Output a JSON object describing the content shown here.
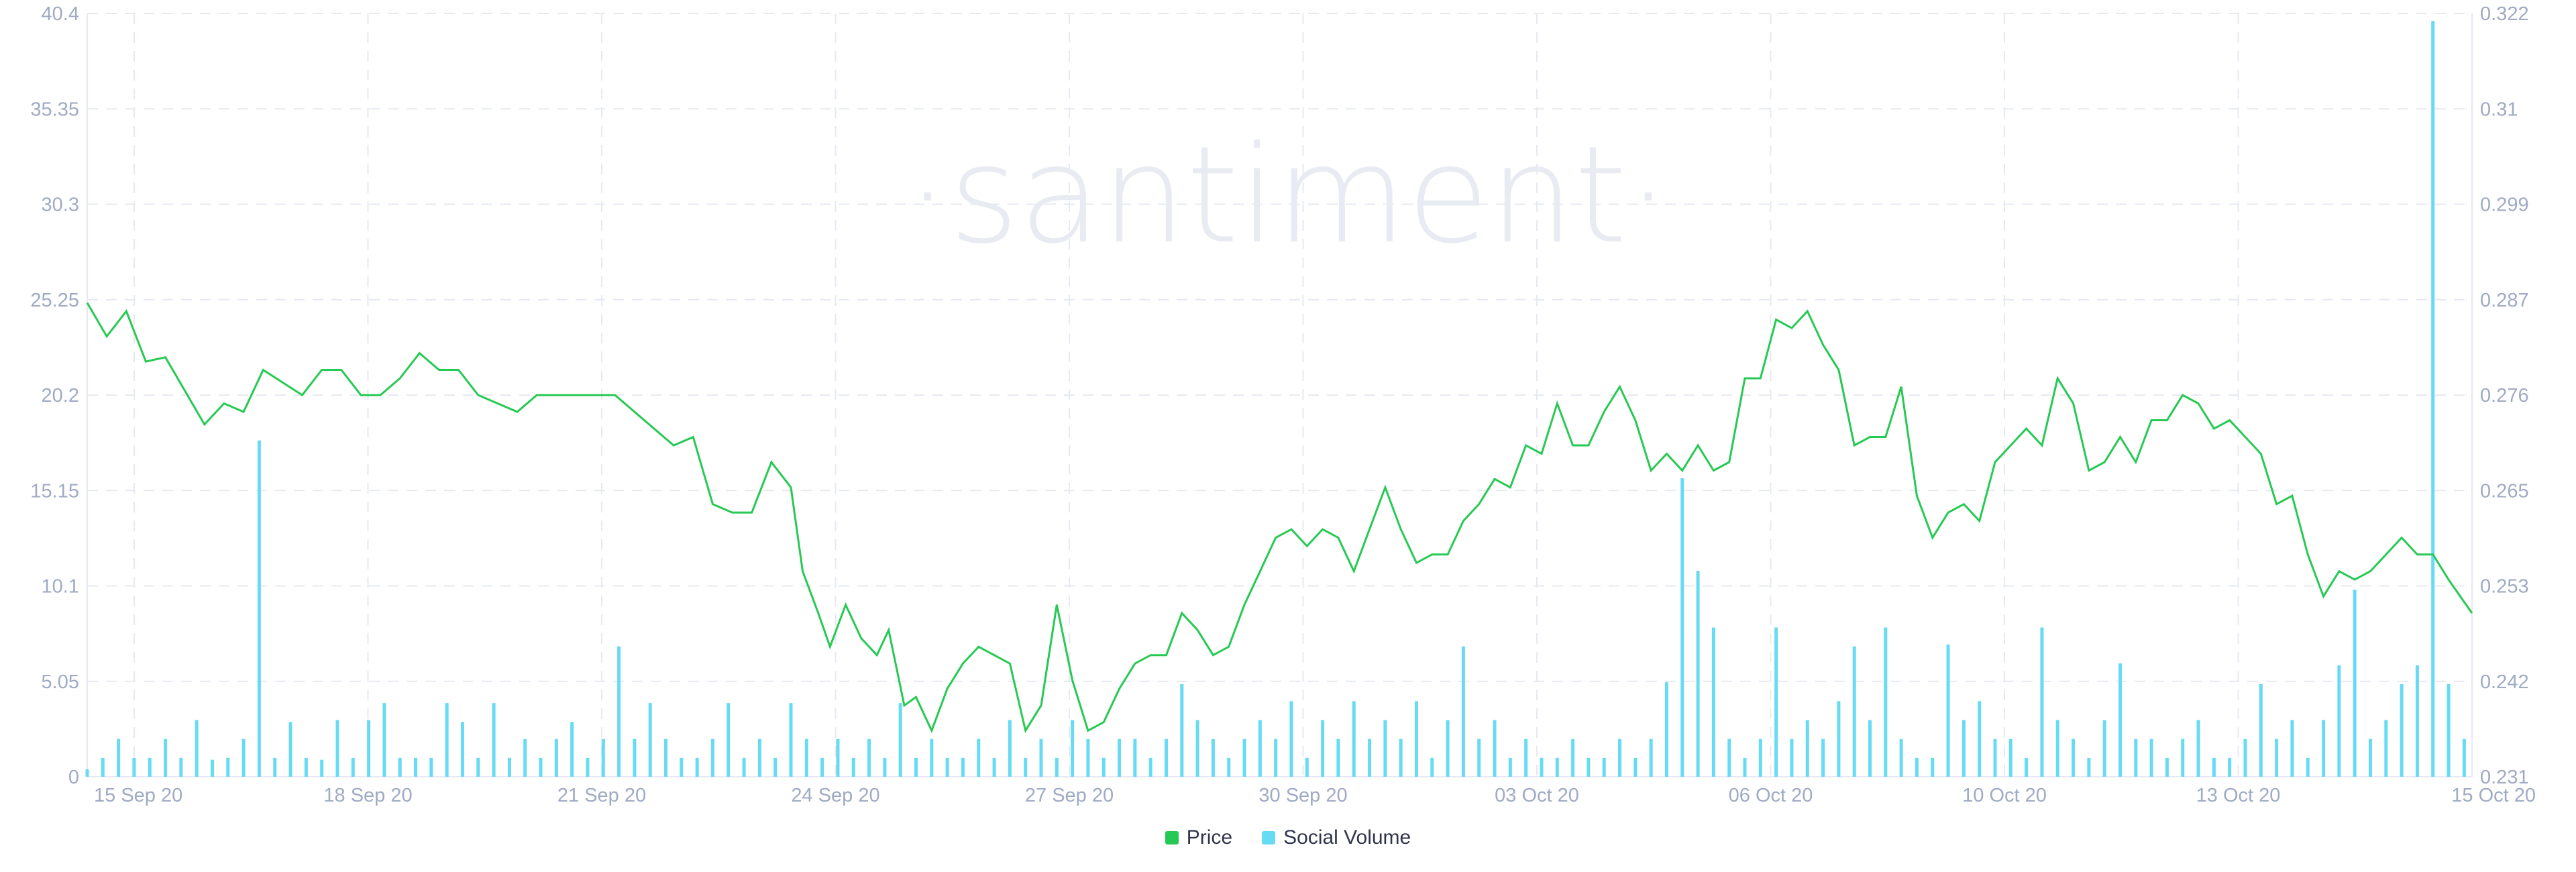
{
  "watermark": "·santiment·",
  "colors": {
    "price": "#26c953",
    "social_volume": "#68dbf4",
    "grid": "#e6e9f1",
    "tick": "#9faac4"
  },
  "chart_data": {
    "type": "line+bar",
    "x_tick_labels": [
      "15 Sep 20",
      "18 Sep 20",
      "21 Sep 20",
      "24 Sep 20",
      "27 Sep 20",
      "30 Sep 20",
      "03 Oct 20",
      "06 Oct 20",
      "10 Oct 20",
      "13 Oct 20",
      "15 Oct 20"
    ],
    "left_axis": {
      "series": "Social Volume",
      "ticks": [
        "40.4",
        "35.35",
        "30.3",
        "25.25",
        "20.2",
        "15.15",
        "10.1",
        "5.05",
        "0"
      ],
      "range": [
        0,
        40.4
      ]
    },
    "right_axis": {
      "series": "Price",
      "ticks": [
        "0.322",
        "0.31",
        "0.299",
        "0.287",
        "0.276",
        "0.265",
        "0.253",
        "0.242",
        "0.231"
      ],
      "range": [
        0.231,
        0.322
      ]
    },
    "legend": [
      "Price",
      "Social Volume"
    ],
    "x_range_days": [
      0,
      30.5
    ],
    "series": [
      {
        "name": "Price",
        "axis": "right",
        "points": [
          [
            0,
            0.2875
          ],
          [
            0.25,
            0.2835
          ],
          [
            0.5,
            0.2865
          ],
          [
            0.75,
            0.2805
          ],
          [
            1,
            0.281
          ],
          [
            1.25,
            0.277
          ],
          [
            1.5,
            0.273
          ],
          [
            1.75,
            0.2755
          ],
          [
            2,
            0.2745
          ],
          [
            2.25,
            0.2795
          ],
          [
            2.5,
            0.278
          ],
          [
            2.75,
            0.2765
          ],
          [
            3,
            0.2795
          ],
          [
            3.25,
            0.2795
          ],
          [
            3.5,
            0.2765
          ],
          [
            3.75,
            0.2765
          ],
          [
            4,
            0.2785
          ],
          [
            4.25,
            0.2815
          ],
          [
            4.5,
            0.2795
          ],
          [
            4.75,
            0.2795
          ],
          [
            5,
            0.2765
          ],
          [
            5.25,
            0.2755
          ],
          [
            5.5,
            0.2745
          ],
          [
            5.75,
            0.2765
          ],
          [
            6,
            0.2765
          ],
          [
            6.25,
            0.2765
          ],
          [
            6.5,
            0.2765
          ],
          [
            6.75,
            0.2765
          ],
          [
            7,
            0.2745
          ],
          [
            7.25,
            0.2725
          ],
          [
            7.5,
            0.2705
          ],
          [
            7.75,
            0.2715
          ],
          [
            8,
            0.2635
          ],
          [
            8.25,
            0.2625
          ],
          [
            8.5,
            0.2625
          ],
          [
            8.75,
            0.2685
          ],
          [
            9,
            0.2655
          ],
          [
            9.15,
            0.2555
          ],
          [
            9.35,
            0.2505
          ],
          [
            9.5,
            0.2465
          ],
          [
            9.7,
            0.2515
          ],
          [
            9.9,
            0.2475
          ],
          [
            10.1,
            0.2455
          ],
          [
            10.25,
            0.2485
          ],
          [
            10.45,
            0.2395
          ],
          [
            10.6,
            0.2405
          ],
          [
            10.8,
            0.2365
          ],
          [
            11,
            0.2415
          ],
          [
            11.2,
            0.2445
          ],
          [
            11.4,
            0.2465
          ],
          [
            11.6,
            0.2455
          ],
          [
            11.8,
            0.2445
          ],
          [
            12,
            0.2365
          ],
          [
            12.2,
            0.2395
          ],
          [
            12.4,
            0.2515
          ],
          [
            12.6,
            0.2425
          ],
          [
            12.8,
            0.2365
          ],
          [
            13,
            0.2375
          ],
          [
            13.2,
            0.2415
          ],
          [
            13.4,
            0.2445
          ],
          [
            13.6,
            0.2455
          ],
          [
            13.8,
            0.2455
          ],
          [
            14,
            0.2505
          ],
          [
            14.2,
            0.2485
          ],
          [
            14.4,
            0.2455
          ],
          [
            14.6,
            0.2465
          ],
          [
            14.8,
            0.2515
          ],
          [
            15,
            0.2555
          ],
          [
            15.2,
            0.2595
          ],
          [
            15.4,
            0.2605
          ],
          [
            15.6,
            0.2585
          ],
          [
            15.8,
            0.2605
          ],
          [
            16,
            0.2595
          ],
          [
            16.2,
            0.2555
          ],
          [
            16.4,
            0.2605
          ],
          [
            16.6,
            0.2655
          ],
          [
            16.8,
            0.2605
          ],
          [
            17,
            0.2565
          ],
          [
            17.2,
            0.2575
          ],
          [
            17.4,
            0.2575
          ],
          [
            17.6,
            0.2615
          ],
          [
            17.8,
            0.2635
          ],
          [
            18,
            0.2665
          ],
          [
            18.2,
            0.2655
          ],
          [
            18.4,
            0.2705
          ],
          [
            18.6,
            0.2695
          ],
          [
            18.8,
            0.2755
          ],
          [
            19,
            0.2705
          ],
          [
            19.2,
            0.2705
          ],
          [
            19.4,
            0.2745
          ],
          [
            19.6,
            0.2775
          ],
          [
            19.8,
            0.2735
          ],
          [
            20,
            0.2675
          ],
          [
            20.2,
            0.2695
          ],
          [
            20.4,
            0.2675
          ],
          [
            20.6,
            0.2705
          ],
          [
            20.8,
            0.2675
          ],
          [
            21,
            0.2685
          ],
          [
            21.2,
            0.2785
          ],
          [
            21.4,
            0.2785
          ],
          [
            21.6,
            0.2855
          ],
          [
            21.8,
            0.2845
          ],
          [
            22,
            0.2865
          ],
          [
            22.2,
            0.2825
          ],
          [
            22.4,
            0.2795
          ],
          [
            22.6,
            0.2705
          ],
          [
            22.8,
            0.2715
          ],
          [
            23,
            0.2715
          ],
          [
            23.2,
            0.2775
          ],
          [
            23.4,
            0.2645
          ],
          [
            23.6,
            0.2595
          ],
          [
            23.8,
            0.2625
          ],
          [
            24,
            0.2635
          ],
          [
            24.2,
            0.2615
          ],
          [
            24.4,
            0.2685
          ],
          [
            24.6,
            0.2705
          ],
          [
            24.8,
            0.2725
          ],
          [
            25,
            0.2705
          ],
          [
            25.2,
            0.2785
          ],
          [
            25.4,
            0.2755
          ],
          [
            25.6,
            0.2675
          ],
          [
            25.8,
            0.2685
          ],
          [
            26,
            0.2715
          ],
          [
            26.2,
            0.2685
          ],
          [
            26.4,
            0.2735
          ],
          [
            26.6,
            0.2735
          ],
          [
            26.8,
            0.2765
          ],
          [
            27,
            0.2755
          ],
          [
            27.2,
            0.2725
          ],
          [
            27.4,
            0.2735
          ],
          [
            27.6,
            0.2715
          ],
          [
            27.8,
            0.2695
          ],
          [
            28,
            0.2635
          ],
          [
            28.2,
            0.2645
          ],
          [
            28.4,
            0.2575
          ],
          [
            28.6,
            0.2525
          ],
          [
            28.8,
            0.2555
          ],
          [
            29,
            0.2545
          ],
          [
            29.2,
            0.2555
          ],
          [
            29.4,
            0.2575
          ],
          [
            29.6,
            0.2595
          ],
          [
            29.8,
            0.2575
          ],
          [
            30,
            0.2575
          ],
          [
            30.2,
            0.2545
          ],
          [
            30.35,
            0.2525
          ],
          [
            30.5,
            0.2505
          ]
        ]
      },
      {
        "name": "Social Volume",
        "axis": "left",
        "bars": [
          [
            0,
            0.4
          ],
          [
            0.2,
            1.0
          ],
          [
            0.4,
            2.0
          ],
          [
            0.6,
            1.0
          ],
          [
            0.8,
            1.0
          ],
          [
            1.0,
            2.0
          ],
          [
            1.2,
            1.0
          ],
          [
            1.4,
            3.0
          ],
          [
            1.6,
            0.9
          ],
          [
            1.8,
            1.0
          ],
          [
            2.0,
            2.0
          ],
          [
            2.2,
            17.8
          ],
          [
            2.4,
            1.0
          ],
          [
            2.6,
            2.9
          ],
          [
            2.8,
            1.0
          ],
          [
            3.0,
            0.9
          ],
          [
            3.2,
            3.0
          ],
          [
            3.4,
            1.0
          ],
          [
            3.6,
            3.0
          ],
          [
            3.8,
            3.9
          ],
          [
            4.0,
            1.0
          ],
          [
            4.2,
            1.0
          ],
          [
            4.4,
            1.0
          ],
          [
            4.6,
            3.9
          ],
          [
            4.8,
            2.9
          ],
          [
            5.0,
            1.0
          ],
          [
            5.2,
            3.9
          ],
          [
            5.4,
            1.0
          ],
          [
            5.6,
            2.0
          ],
          [
            5.8,
            1.0
          ],
          [
            6.0,
            2.0
          ],
          [
            6.2,
            2.9
          ],
          [
            6.4,
            1.0
          ],
          [
            6.6,
            2.0
          ],
          [
            6.8,
            6.9
          ],
          [
            7.0,
            2.0
          ],
          [
            7.2,
            3.9
          ],
          [
            7.4,
            2.0
          ],
          [
            7.6,
            1.0
          ],
          [
            7.8,
            1.0
          ],
          [
            8.0,
            2.0
          ],
          [
            8.2,
            3.9
          ],
          [
            8.4,
            1.0
          ],
          [
            8.6,
            2.0
          ],
          [
            8.8,
            1.0
          ],
          [
            9.0,
            3.9
          ],
          [
            9.2,
            2.0
          ],
          [
            9.4,
            1.0
          ],
          [
            9.6,
            2.0
          ],
          [
            9.8,
            1.0
          ],
          [
            10.0,
            2.0
          ],
          [
            10.2,
            1.0
          ],
          [
            10.4,
            3.9
          ],
          [
            10.6,
            1.0
          ],
          [
            10.8,
            2.0
          ],
          [
            11.0,
            1.0
          ],
          [
            11.2,
            1.0
          ],
          [
            11.4,
            2.0
          ],
          [
            11.6,
            1.0
          ],
          [
            11.8,
            3.0
          ],
          [
            12.0,
            1.0
          ],
          [
            12.2,
            2.0
          ],
          [
            12.4,
            1.0
          ],
          [
            12.6,
            3.0
          ],
          [
            12.8,
            2.0
          ],
          [
            13.0,
            1.0
          ],
          [
            13.2,
            2.0
          ],
          [
            13.4,
            2.0
          ],
          [
            13.6,
            1.0
          ],
          [
            13.8,
            2.0
          ],
          [
            14.0,
            4.9
          ],
          [
            14.2,
            3.0
          ],
          [
            14.4,
            2.0
          ],
          [
            14.6,
            1.0
          ],
          [
            14.8,
            2.0
          ],
          [
            15.0,
            3.0
          ],
          [
            15.2,
            2.0
          ],
          [
            15.4,
            4.0
          ],
          [
            15.6,
            1.0
          ],
          [
            15.8,
            3.0
          ],
          [
            16.0,
            2.0
          ],
          [
            16.2,
            4.0
          ],
          [
            16.4,
            2.0
          ],
          [
            16.6,
            3.0
          ],
          [
            16.8,
            2.0
          ],
          [
            17.0,
            4.0
          ],
          [
            17.2,
            1.0
          ],
          [
            17.4,
            3.0
          ],
          [
            17.6,
            6.9
          ],
          [
            17.8,
            2.0
          ],
          [
            18.0,
            3.0
          ],
          [
            18.2,
            1.0
          ],
          [
            18.4,
            2.0
          ],
          [
            18.6,
            1.0
          ],
          [
            18.8,
            1.0
          ],
          [
            19.0,
            2.0
          ],
          [
            19.2,
            1.0
          ],
          [
            19.4,
            1.0
          ],
          [
            19.6,
            2.0
          ],
          [
            19.8,
            1.0
          ],
          [
            20.0,
            2.0
          ],
          [
            20.2,
            5.0
          ],
          [
            20.4,
            15.8
          ],
          [
            20.6,
            10.9
          ],
          [
            20.8,
            7.9
          ],
          [
            21.0,
            2.0
          ],
          [
            21.2,
            1.0
          ],
          [
            21.4,
            2.0
          ],
          [
            21.6,
            7.9
          ],
          [
            21.8,
            2.0
          ],
          [
            22.0,
            3.0
          ],
          [
            22.2,
            2.0
          ],
          [
            22.4,
            4.0
          ],
          [
            22.6,
            6.9
          ],
          [
            22.8,
            3.0
          ],
          [
            23.0,
            7.9
          ],
          [
            23.2,
            2.0
          ],
          [
            23.4,
            1.0
          ],
          [
            23.6,
            1.0
          ],
          [
            23.8,
            7.0
          ],
          [
            24.0,
            3.0
          ],
          [
            24.2,
            4.0
          ],
          [
            24.4,
            2.0
          ],
          [
            24.6,
            2.0
          ],
          [
            24.8,
            1.0
          ],
          [
            25.0,
            7.9
          ],
          [
            25.2,
            3.0
          ],
          [
            25.4,
            2.0
          ],
          [
            25.6,
            1.0
          ],
          [
            25.8,
            3.0
          ],
          [
            26.0,
            6.0
          ],
          [
            26.2,
            2.0
          ],
          [
            26.4,
            2.0
          ],
          [
            26.6,
            1.0
          ],
          [
            26.8,
            2.0
          ],
          [
            27.0,
            3.0
          ],
          [
            27.2,
            1.0
          ],
          [
            27.4,
            1.0
          ],
          [
            27.6,
            2.0
          ],
          [
            27.8,
            4.9
          ],
          [
            28.0,
            2.0
          ],
          [
            28.2,
            3.0
          ],
          [
            28.4,
            1.0
          ],
          [
            28.6,
            3.0
          ],
          [
            28.8,
            5.9
          ],
          [
            29.0,
            9.9
          ],
          [
            29.2,
            2.0
          ],
          [
            29.4,
            3.0
          ],
          [
            29.6,
            4.9
          ],
          [
            29.8,
            5.9
          ],
          [
            30.0,
            40.0
          ],
          [
            30.2,
            4.9
          ],
          [
            30.4,
            2.0
          ]
        ]
      }
    ],
    "grid": true,
    "legend_position": "bottom-center"
  }
}
